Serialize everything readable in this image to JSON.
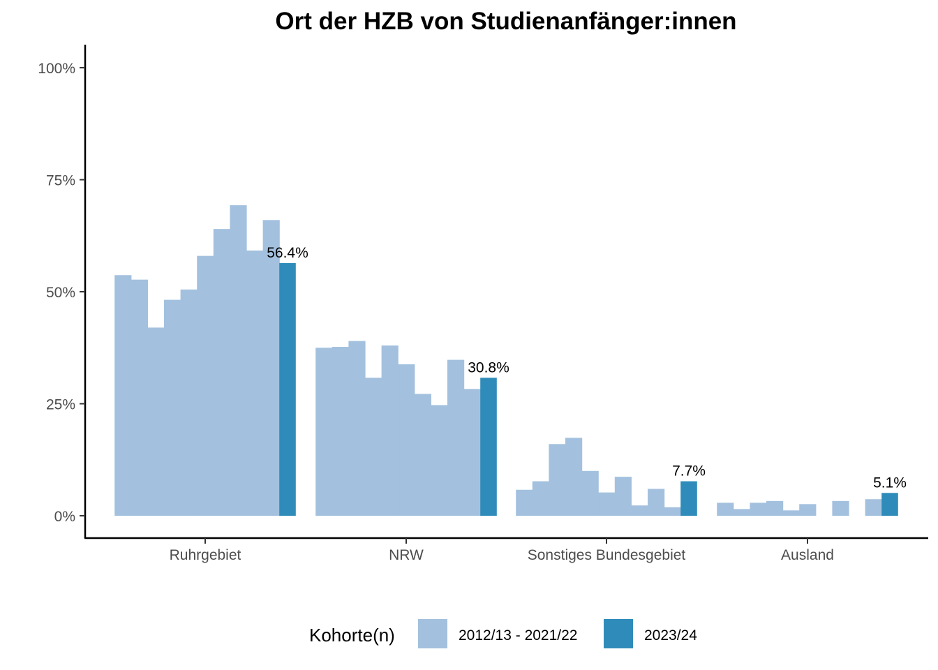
{
  "chart_data": {
    "type": "bar",
    "title": "Ort der HZB von Studienanfänger:innen",
    "xlabel": "",
    "ylabel": "",
    "ylim": [
      0,
      1.05
    ],
    "y_ticks": [
      0,
      0.25,
      0.5,
      0.75,
      1.0
    ],
    "y_tick_labels": [
      "0%",
      "25%",
      "50%",
      "75%",
      "100%"
    ],
    "grid": false,
    "categories": [
      "Ruhrgebiet",
      "NRW",
      "Sonstiges Bundesgebiet",
      "Ausland"
    ],
    "series": [
      {
        "name": "2012/13 - 2021/22",
        "color": "#a3c1de",
        "values": [
          [
            0.537,
            0.527,
            0.42,
            0.482,
            0.505,
            0.58,
            0.64,
            0.693,
            0.592,
            0.66
          ],
          [
            0.375,
            0.377,
            0.39,
            0.308,
            0.38,
            0.338,
            0.272,
            0.247,
            0.348,
            0.283
          ],
          [
            0.058,
            0.077,
            0.16,
            0.174,
            0.1,
            0.052,
            0.087,
            0.023,
            0.06,
            0.019
          ],
          [
            0.029,
            0.015,
            0.029,
            0.033,
            0.012,
            0.026,
            0.0,
            0.033,
            0.0,
            0.037
          ]
        ]
      },
      {
        "name": "2023/24",
        "color": "#2f8cba",
        "values": [
          0.564,
          0.308,
          0.077,
          0.051
        ],
        "labels": [
          "56.4%",
          "30.8%",
          "7.7%",
          "5.1%"
        ]
      }
    ],
    "legend": {
      "title": "Kohorte(n)",
      "position": "bottom"
    }
  }
}
